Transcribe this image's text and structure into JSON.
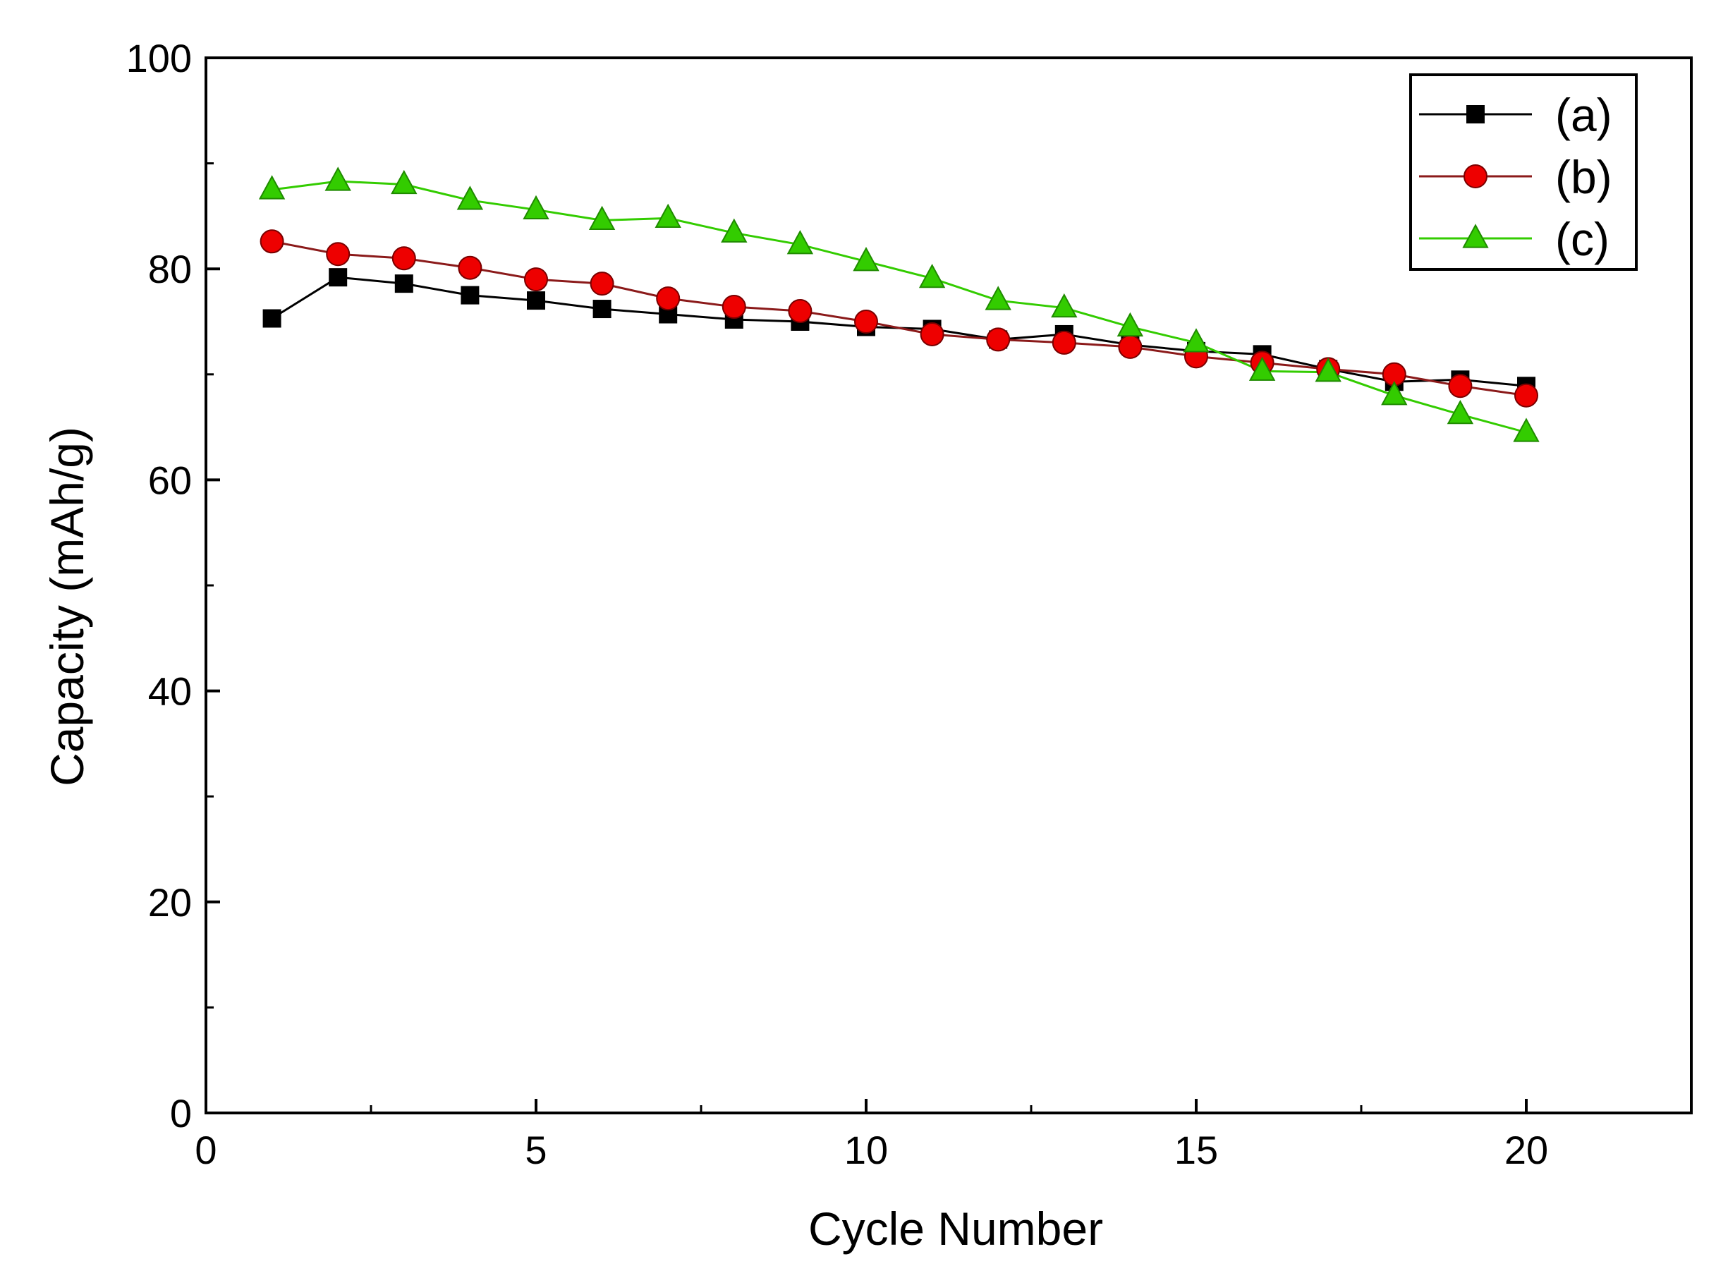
{
  "chart_data": {
    "type": "line",
    "title": "",
    "xlabel": "Cycle Number",
    "ylabel": "Capacity (mAh/g)",
    "xlim": [
      0,
      22.5
    ],
    "ylim": [
      0,
      100
    ],
    "x_ticks": [
      0,
      5,
      10,
      15,
      20
    ],
    "x_minor_ticks": [
      2.5,
      7.5,
      12.5,
      17.5
    ],
    "y_ticks": [
      0,
      20,
      40,
      60,
      80,
      100
    ],
    "y_minor_ticks": [
      10,
      30,
      50,
      70,
      90
    ],
    "x_tick_labels": [
      "0",
      "5",
      "10",
      "15",
      "20"
    ],
    "y_tick_labels": [
      "0",
      "20",
      "40",
      "60",
      "80",
      "100"
    ],
    "grid": false,
    "legend_position": "top-right",
    "x": [
      1,
      2,
      3,
      4,
      5,
      6,
      7,
      8,
      9,
      10,
      11,
      12,
      13,
      14,
      15,
      16,
      17,
      18,
      19,
      20
    ],
    "series": [
      {
        "name": "(a)",
        "marker": "square",
        "color": "#000000",
        "line_color": "#000000",
        "values": [
          75.3,
          79.2,
          78.6,
          77.5,
          77.0,
          76.2,
          75.7,
          75.2,
          75.0,
          74.5,
          74.3,
          73.3,
          73.8,
          72.8,
          72.2,
          71.9,
          70.5,
          69.3,
          69.5,
          68.9
        ]
      },
      {
        "name": "(b)",
        "marker": "circle",
        "color": "#ee0000",
        "line_color": "#8b1a1a",
        "values": [
          82.6,
          81.4,
          81.0,
          80.1,
          79.0,
          78.6,
          77.2,
          76.4,
          76.0,
          75.0,
          73.8,
          73.3,
          73.0,
          72.6,
          71.7,
          71.1,
          70.5,
          70.0,
          68.9,
          68.0
        ]
      },
      {
        "name": "(c)",
        "marker": "triangle",
        "color": "#33cc00",
        "line_color": "#33cc00",
        "values": [
          87.5,
          88.3,
          88.0,
          86.5,
          85.6,
          84.6,
          84.8,
          83.4,
          82.3,
          80.7,
          79.1,
          77.0,
          76.3,
          74.5,
          73.0,
          70.3,
          70.2,
          68.0,
          66.2,
          64.5
        ]
      }
    ]
  }
}
